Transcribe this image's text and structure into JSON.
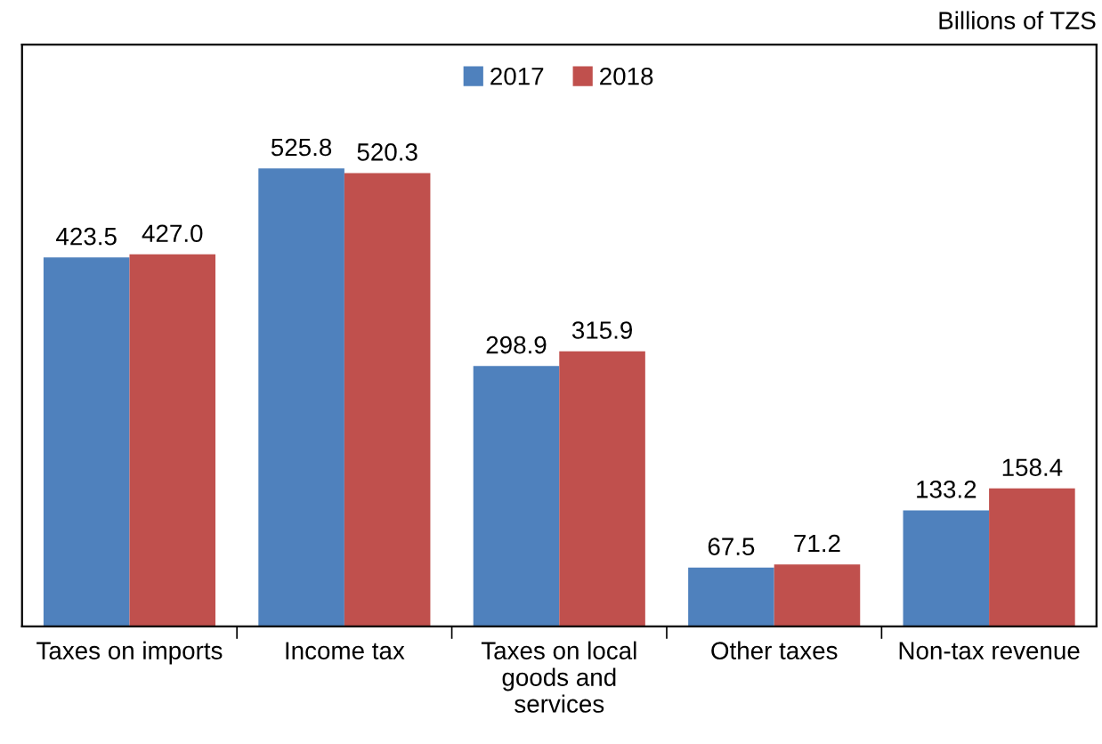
{
  "chart_data": {
    "type": "bar",
    "categories": [
      "Taxes on imports",
      "Income tax",
      "Taxes on local goods and services",
      "Other taxes",
      "Non-tax revenue"
    ],
    "series": [
      {
        "name": "2017",
        "color": "#4f81bd",
        "values": [
          423.5,
          525.8,
          298.9,
          67.5,
          133.2
        ],
        "value_labels": [
          "423.5",
          "525.8",
          "298.9",
          "67.5",
          "133.2"
        ]
      },
      {
        "name": "2018",
        "color": "#c0504d",
        "values": [
          427.0,
          520.3,
          315.9,
          71.2,
          158.4
        ],
        "value_labels": [
          "427.0",
          "520.3",
          "315.9",
          "71.2",
          "158.4"
        ]
      }
    ],
    "annotations": [
      "Billions of TZS"
    ],
    "legend": "top",
    "grid": false,
    "tick_labels": "x"
  }
}
